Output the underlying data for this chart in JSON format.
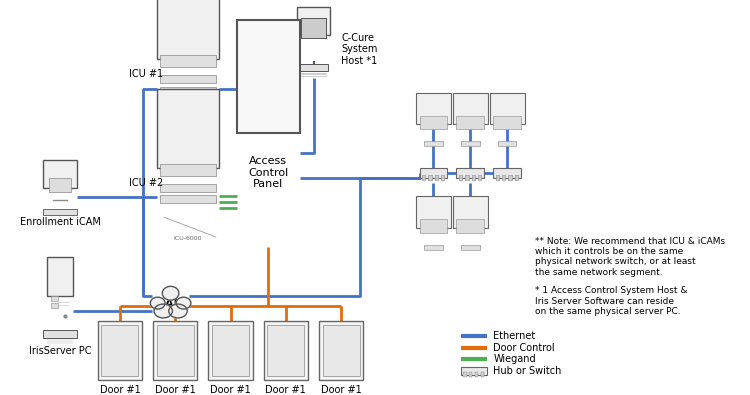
{
  "bg_color": "#ffffff",
  "ethernet_color": "#4472C4",
  "door_control_color": "#E36C0A",
  "wiegand_color": "#4CAF50",
  "line_width": 2.0,
  "note1": "** Note: We recommend that ICU & iCAMs\nwhich it controls be on the same\nphysical network switch, or at least\nthe same network segment.",
  "note2": "* 1 Access Control System Host &\nIris Server Software can reside\non the same physical server PC.",
  "legend_items": [
    {
      "label": "Ethernet",
      "color": "#4472C4"
    },
    {
      "label": "Door Control",
      "color": "#E36C0A"
    },
    {
      "label": "Wiegand",
      "color": "#4CAF50"
    },
    {
      "label": "Hub or Switch",
      "color": "#888888"
    }
  ]
}
